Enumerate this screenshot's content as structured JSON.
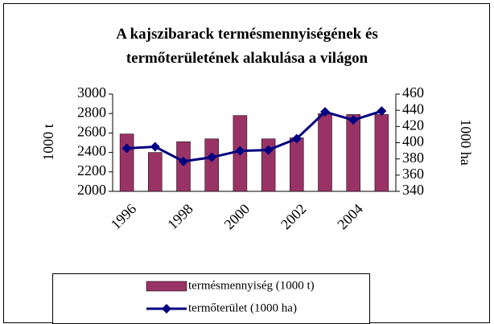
{
  "chart_data": {
    "type": "bar-line",
    "title": "A kajszibarack termésmennyiségének és termőterületének alakulása a világon",
    "categories": [
      "1996",
      null,
      "1998",
      null,
      "2000",
      null,
      "2002",
      null,
      "2004",
      null
    ],
    "series": [
      {
        "name": "termésmennyiség (1000 t)",
        "type": "bar",
        "color": "#993366",
        "values": [
          2590,
          2400,
          2510,
          2540,
          2780,
          2540,
          2550,
          2800,
          2790,
          2790
        ]
      },
      {
        "name": "termőterület (1000 ha)",
        "type": "line",
        "axis": "y2",
        "color": "#000080",
        "values": [
          393,
          395,
          377,
          382,
          390,
          391,
          405,
          438,
          428,
          439
        ]
      }
    ],
    "ylabel": "1000 t",
    "y2label": "1000 ha",
    "ylim": [
      2000,
      3000
    ],
    "yticks": [
      2000,
      2200,
      2400,
      2600,
      2800,
      3000
    ],
    "y2lim": [
      340,
      460
    ],
    "y2ticks": [
      340,
      360,
      380,
      400,
      420,
      440,
      460
    ],
    "grid": false,
    "legend": "bottom"
  }
}
